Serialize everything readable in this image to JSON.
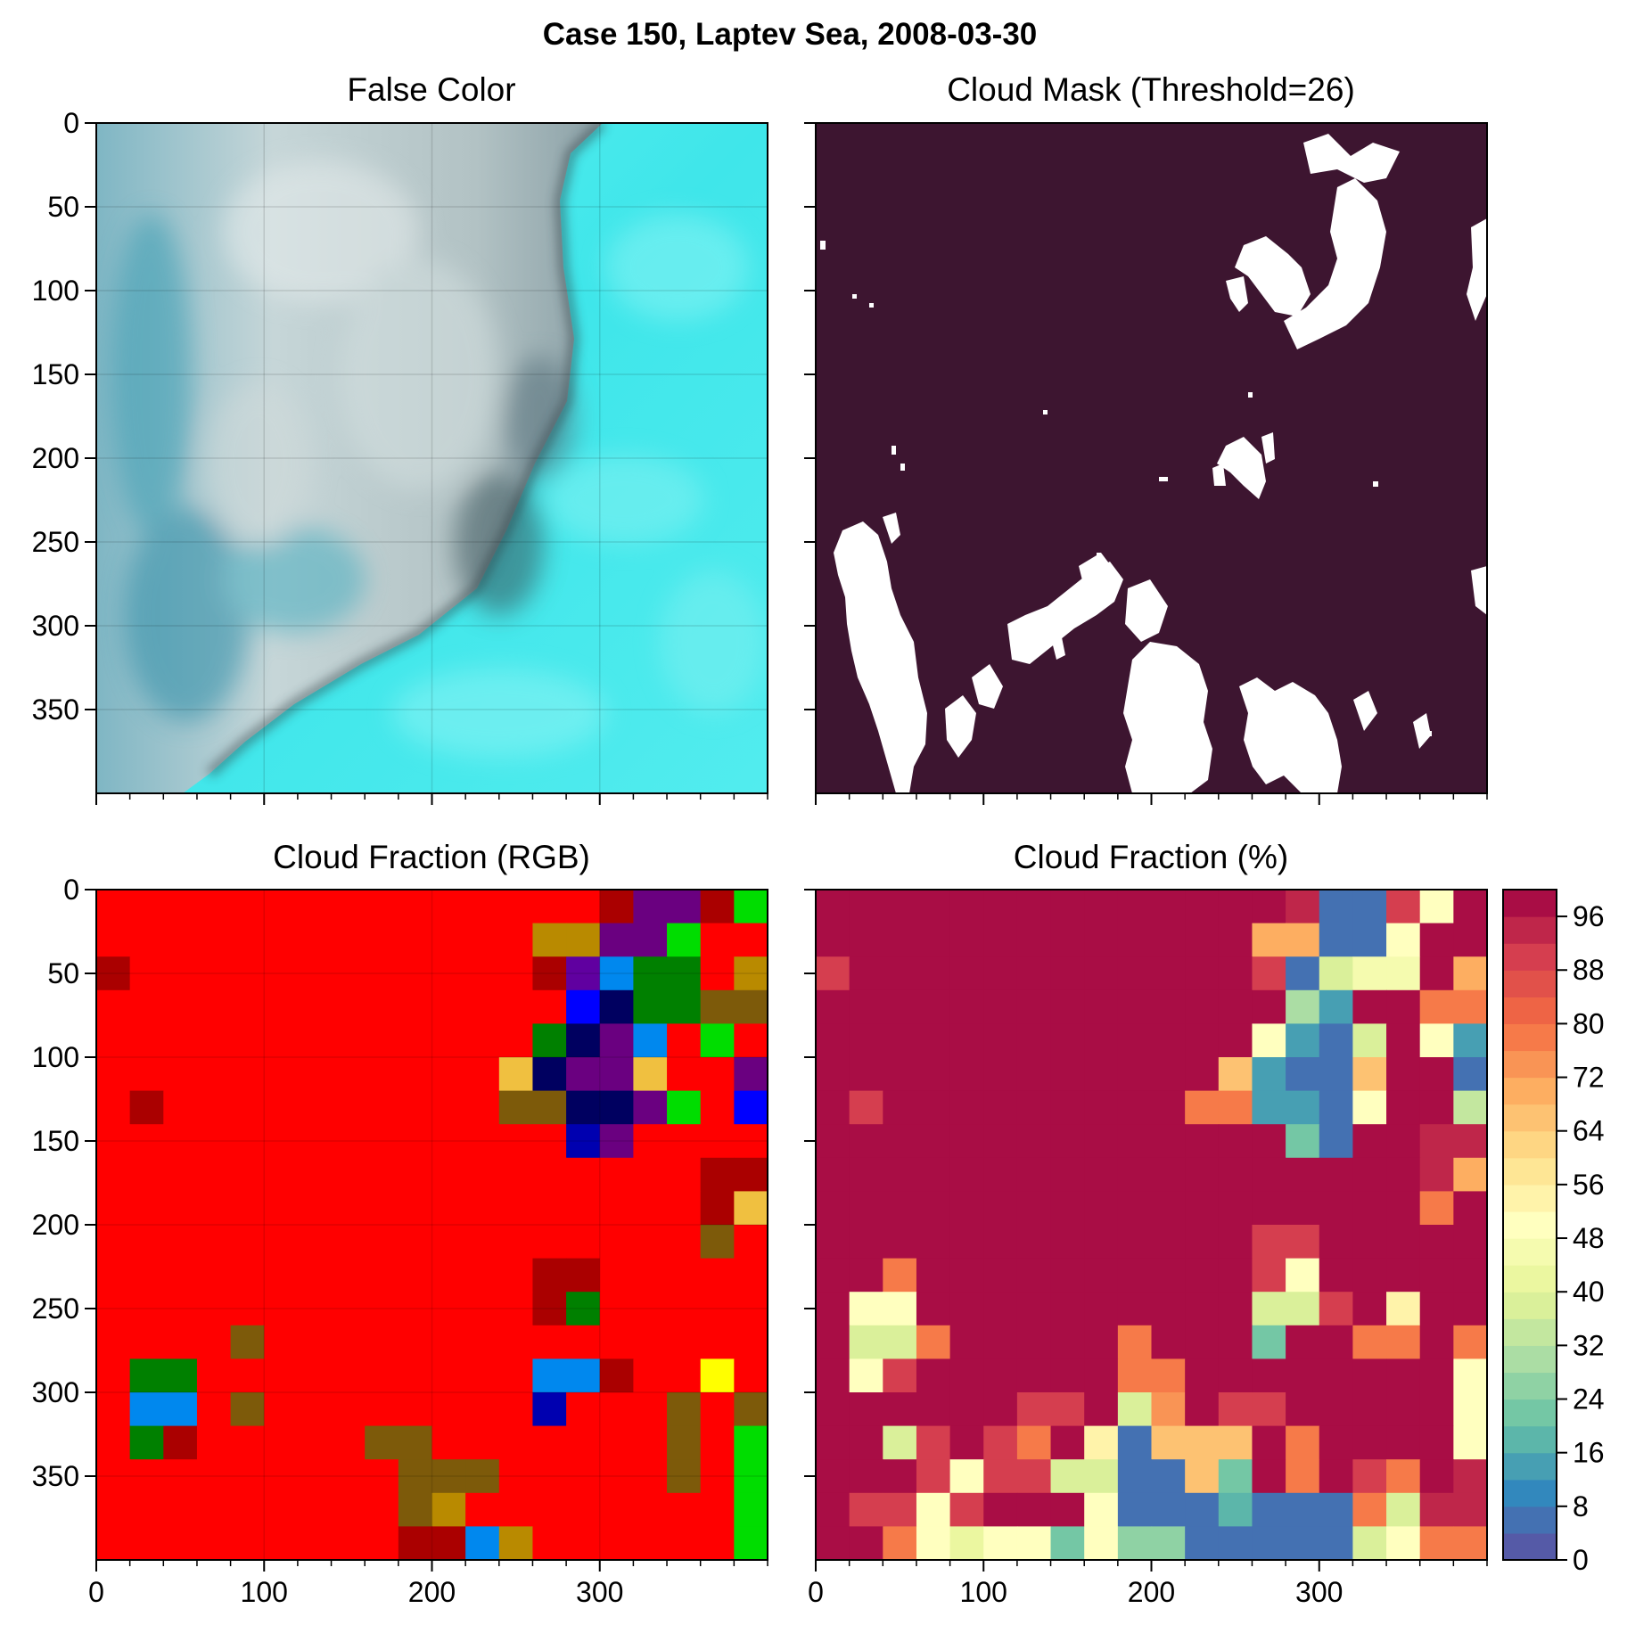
{
  "figure": {
    "suptitle": "Case 150, Laptev Sea, 2008-03-30"
  },
  "chart_data": [
    {
      "type": "heatmap",
      "title": "False Color",
      "xlim": [
        0,
        400
      ],
      "ylim": [
        400,
        0
      ],
      "xticks": [
        0,
        100,
        200,
        300
      ],
      "yticks": [
        0,
        50,
        100,
        150,
        200,
        250,
        300,
        350
      ],
      "show_xticklabels": false,
      "show_yticklabels": true,
      "grid": true,
      "description": "satellite false-color image: grey-white cloud and pack ice in the west, cyan open sea to the east, dark coastline curving from top-right to bottom-left"
    },
    {
      "type": "heatmap",
      "title": "Cloud Mask (Threshold=26)",
      "xlim": [
        0,
        400
      ],
      "ylim": [
        400,
        0
      ],
      "xticks": [
        0,
        100,
        200,
        300
      ],
      "yticks": [
        0,
        50,
        100,
        150,
        200,
        250,
        300,
        350
      ],
      "show_xticklabels": false,
      "show_yticklabels": false,
      "background_color": "#3d1530",
      "mask_color": "#ffffff"
    },
    {
      "type": "heatmap",
      "title": "Cloud Fraction (RGB)",
      "xlim": [
        0,
        400
      ],
      "ylim": [
        400,
        0
      ],
      "xticks": [
        0,
        100,
        200,
        300
      ],
      "yticks": [
        0,
        50,
        100,
        150,
        200,
        250,
        300,
        350
      ],
      "show_xticklabels": true,
      "show_yticklabels": true,
      "grid": true,
      "block_size": 20,
      "grid_shape": [
        20,
        20
      ],
      "palette": {
        "R": "#ff0000",
        "D": "#aa0000",
        "M": "#6e0000",
        "O": "#7d5a0a",
        "G": "#b98a00",
        "L": "#f0c040",
        "Y": "#ffff00",
        "K": "#008000",
        "E": "#00dd00",
        "W": "#005000",
        "A": "#0088ee",
        "B": "#0000ff",
        "U": "#0000b0",
        "N": "#000060",
        "P": "#6a0080",
        "V": "#6000a0"
      },
      "cells": [
        "RRRRRRRRRRRRRRRDPPDE",
        "RRRRRRRRRRRRRGGPPERR",
        "DRRRRRRRRRRRRDVAKKRG",
        "RRRRRRRRRRRRRRBNKKOO",
        "RRRRRRRRRRRRRKNPARER",
        "RRRRRRRRRRRRLNPPLRRP",
        "RDRRRRRRRRRROONNPERB",
        "RRRRRRRRRRRRRRUPRRRR",
        "RRRRRRRRRRRRRRRRRRDD",
        "RRRRRRRRRRRRRRRRRRDL",
        "RRRRRRRRRRRRRRRRRROR",
        "RRRRRRRRRRRRRDDRRRRR",
        "RRRRRRRRRRRRRDKRRRRR",
        "RRRRORRRRRRRRRRRRRRR",
        "RKKRRRRRRRRRRAADRRYR",
        "RAARORRRRRRRRURRRORO",
        "RKDRRRRROORRRRRRRORE",
        "RRRRRRRRROOORRRRRORE",
        "RRRRRRRRROGRRRRRRRRE",
        "RRRRRRRRRDDAGRRRRRRE"
      ]
    },
    {
      "type": "heatmap",
      "title": "Cloud Fraction (%)",
      "xlim": [
        0,
        400
      ],
      "ylim": [
        400,
        0
      ],
      "xticks": [
        0,
        100,
        200,
        300
      ],
      "yticks": [
        0,
        50,
        100,
        150,
        200,
        250,
        300,
        350
      ],
      "show_xticklabels": true,
      "show_yticklabels": false,
      "block_size": 20,
      "colorbar": {
        "colormap": "Spectral_r",
        "range": [
          0,
          100
        ],
        "ticks": [
          0,
          8,
          16,
          24,
          32,
          40,
          48,
          56,
          64,
          72,
          80,
          88,
          96
        ],
        "levels": 25
      },
      "values": [
        [
          100,
          100,
          100,
          100,
          100,
          100,
          100,
          100,
          100,
          100,
          100,
          100,
          100,
          100,
          92,
          4,
          4,
          90,
          50,
          100
        ],
        [
          100,
          100,
          100,
          100,
          100,
          100,
          100,
          100,
          100,
          100,
          100,
          100,
          100,
          70,
          70,
          4,
          4,
          50,
          100,
          100
        ],
        [
          88,
          100,
          100,
          100,
          100,
          100,
          100,
          100,
          100,
          100,
          100,
          100,
          100,
          88,
          6,
          36,
          45,
          45,
          100,
          70
        ],
        [
          100,
          100,
          100,
          100,
          100,
          100,
          100,
          100,
          100,
          100,
          100,
          100,
          100,
          100,
          30,
          14,
          100,
          100,
          78,
          78
        ],
        [
          100,
          100,
          100,
          100,
          100,
          100,
          100,
          100,
          100,
          100,
          100,
          100,
          100,
          48,
          14,
          4,
          36,
          100,
          50,
          14
        ],
        [
          100,
          100,
          100,
          100,
          100,
          100,
          100,
          100,
          100,
          100,
          100,
          100,
          66,
          14,
          4,
          4,
          66,
          100,
          100,
          4
        ],
        [
          100,
          88,
          100,
          100,
          100,
          100,
          100,
          100,
          100,
          100,
          100,
          78,
          78,
          14,
          14,
          4,
          50,
          100,
          100,
          32
        ],
        [
          100,
          100,
          100,
          100,
          100,
          100,
          100,
          100,
          100,
          100,
          100,
          100,
          100,
          100,
          22,
          4,
          100,
          100,
          92,
          92
        ],
        [
          100,
          100,
          100,
          100,
          100,
          100,
          100,
          100,
          100,
          100,
          100,
          100,
          100,
          100,
          100,
          100,
          100,
          100,
          92,
          70
        ],
        [
          100,
          100,
          100,
          100,
          100,
          100,
          100,
          100,
          100,
          100,
          100,
          100,
          100,
          100,
          100,
          100,
          100,
          100,
          78,
          100
        ],
        [
          100,
          100,
          100,
          100,
          100,
          100,
          100,
          100,
          100,
          100,
          100,
          100,
          100,
          88,
          88,
          100,
          100,
          100,
          100,
          100
        ],
        [
          100,
          100,
          78,
          100,
          100,
          100,
          100,
          100,
          100,
          100,
          100,
          100,
          100,
          88,
          50,
          100,
          100,
          100,
          100,
          100
        ],
        [
          100,
          48,
          48,
          100,
          100,
          100,
          100,
          100,
          100,
          100,
          100,
          100,
          100,
          36,
          36,
          88,
          100,
          52,
          100,
          100
        ],
        [
          100,
          36,
          36,
          78,
          100,
          100,
          100,
          100,
          100,
          78,
          100,
          100,
          100,
          22,
          100,
          100,
          78,
          78,
          100,
          78
        ],
        [
          100,
          48,
          88,
          100,
          100,
          100,
          100,
          100,
          100,
          78,
          78,
          100,
          100,
          100,
          100,
          100,
          100,
          100,
          100,
          50
        ],
        [
          100,
          100,
          100,
          100,
          100,
          100,
          88,
          88,
          100,
          36,
          72,
          100,
          88,
          88,
          100,
          100,
          100,
          100,
          100,
          50
        ],
        [
          100,
          100,
          36,
          88,
          100,
          88,
          78,
          100,
          52,
          4,
          66,
          66,
          66,
          100,
          78,
          100,
          100,
          100,
          100,
          50
        ],
        [
          100,
          100,
          100,
          88,
          50,
          88,
          88,
          36,
          36,
          4,
          4,
          66,
          22,
          100,
          78,
          100,
          88,
          78,
          100,
          92
        ],
        [
          100,
          88,
          88,
          50,
          88,
          100,
          100,
          100,
          50,
          4,
          4,
          4,
          16,
          4,
          4,
          4,
          78,
          36,
          92,
          92
        ],
        [
          100,
          100,
          78,
          48,
          40,
          50,
          50,
          22,
          48,
          26,
          26,
          4,
          4,
          4,
          4,
          4,
          36,
          48,
          78,
          78
        ]
      ]
    }
  ]
}
